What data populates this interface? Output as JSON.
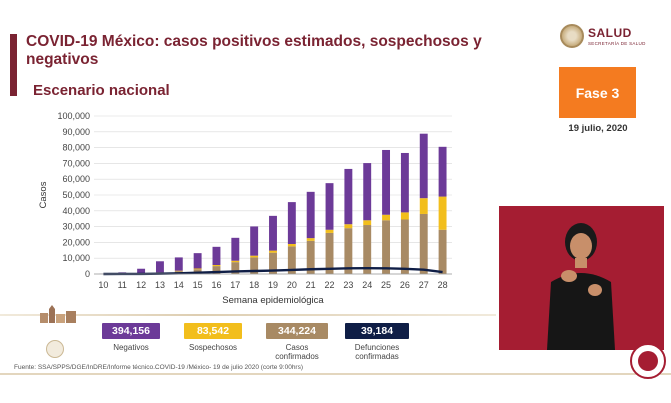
{
  "header": {
    "title": "COVID-19 México: casos positivos estimados, sospechosos y negativos",
    "subtitle": "Escenario nacional"
  },
  "logo": {
    "text": "SALUD",
    "subtext": "SECRETARÍA DE SALUD"
  },
  "phase": {
    "label": "Fase 3",
    "date": "19 julio, 2020"
  },
  "chart_data": {
    "type": "bar",
    "stacked": true,
    "xlabel": "Semana epidemiológica",
    "ylabel": "Casos",
    "ylim": [
      0,
      100000
    ],
    "yticks": [
      "0",
      "10,000",
      "20,000",
      "30,000",
      "40,000",
      "50,000",
      "60,000",
      "70,000",
      "80,000",
      "90,000",
      "100,000"
    ],
    "categories": [
      "10",
      "11",
      "12",
      "13",
      "14",
      "15",
      "16",
      "17",
      "18",
      "19",
      "20",
      "21",
      "22",
      "23",
      "24",
      "25",
      "26",
      "27",
      "28"
    ],
    "series": [
      {
        "name": "Casos confirmados",
        "color": "#a88a64",
        "values": [
          20,
          80,
          250,
          900,
          1800,
          3000,
          5000,
          7500,
          10500,
          13500,
          17500,
          21000,
          26000,
          29000,
          31000,
          34000,
          34500,
          38000,
          28000
        ]
      },
      {
        "name": "Sospechosos",
        "color": "#f2be1c",
        "values": [
          10,
          30,
          80,
          150,
          300,
          500,
          700,
          900,
          1100,
          1300,
          1500,
          1700,
          2000,
          2500,
          3000,
          3500,
          4500,
          10000,
          21000
        ]
      },
      {
        "name": "Negativos",
        "color": "#6c3a98",
        "values": [
          100,
          900,
          3000,
          7000,
          8400,
          9700,
          11500,
          14500,
          18500,
          22000,
          26500,
          29300,
          29500,
          35000,
          36200,
          41000,
          37600,
          40800,
          31500
        ]
      },
      {
        "name": "Defunciones confirmadas",
        "type": "line",
        "color": "#0f1e46",
        "values": [
          5,
          15,
          60,
          180,
          450,
          800,
          1200,
          1600,
          1900,
          2200,
          2600,
          3000,
          3300,
          3600,
          3700,
          3600,
          3300,
          2700,
          1200
        ]
      }
    ]
  },
  "legend": [
    {
      "value": "394,156",
      "label": "Negativos",
      "color": "#6c3a98"
    },
    {
      "value": "83,542",
      "label": "Sospechosos",
      "color": "#f2be1c"
    },
    {
      "value": "344,224",
      "label": "Casos confirmados",
      "color": "#a88a64"
    },
    {
      "value": "39,184",
      "label": "Defunciones confirmadas",
      "color": "#0f1e46"
    }
  ],
  "footer": {
    "source": "Fuente: SSA/SPPS/DGE/InDRE/Informe técnico.COVID-19 /México- 19 de julio 2020 (corte 9:00hrs)"
  }
}
